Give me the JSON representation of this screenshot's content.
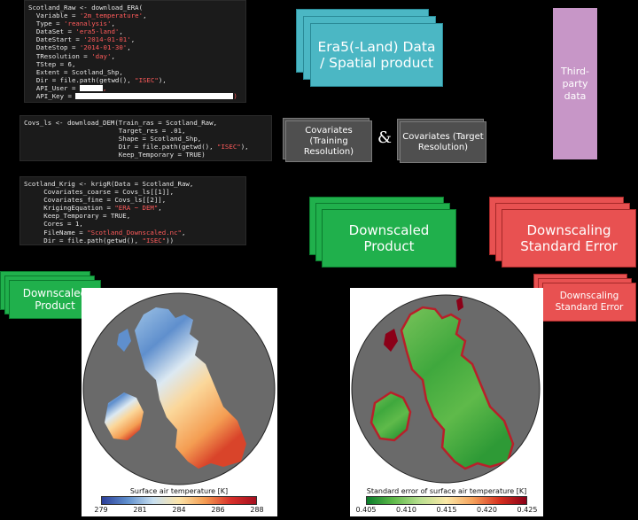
{
  "code_block_1": {
    "lines": [
      [
        "Scotland_Raw <- download_ERA(",
        "",
        ""
      ],
      [
        "  Variable = ",
        "'2m_temperature'",
        ","
      ],
      [
        "  Type = ",
        "'reanalysis'",
        ","
      ],
      [
        "  DataSet = ",
        "'era5-land'",
        ","
      ],
      [
        "  DateStart = ",
        "'2014-01-01'",
        ","
      ],
      [
        "  DateStop = ",
        "'2014-01-30'",
        ","
      ],
      [
        "  TResolution = ",
        "'day'",
        ","
      ],
      [
        "  TStep = 6,",
        "",
        ""
      ],
      [
        "  Extent = Scotland_Shp,",
        "",
        ""
      ],
      [
        "  Dir = file.path(getwd(), ",
        "\"ISEC\"",
        "),"
      ],
      [
        "  API_User = ",
        "",
        ""
      ],
      [
        "  API_Key = ",
        "",
        ""
      ]
    ]
  },
  "code_block_2": {
    "lines": [
      [
        "Covs_ls <- download_DEM(Train_ras = Scotland_Raw,",
        "",
        ""
      ],
      [
        "                        Target_res = .01,",
        "",
        ""
      ],
      [
        "                        Shape = Scotland_Shp,",
        "",
        ""
      ],
      [
        "                        Dir = file.path(getwd(), ",
        "\"ISEC\"",
        "),"
      ],
      [
        "                        Keep_Temporary = TRUE)",
        "",
        ""
      ]
    ]
  },
  "code_block_3": {
    "lines": [
      [
        "Scotland_Krig <- krigR(Data = Scotland_Raw,",
        "",
        ""
      ],
      [
        "     Covariates_coarse = Covs_ls[[1]],",
        "",
        ""
      ],
      [
        "     Covariates_fine = Covs_ls[[2]],",
        "",
        ""
      ],
      [
        "     KrigingEquation = ",
        "\"ERA ~ DEM\"",
        ","
      ],
      [
        "     Keep_Temporary = TRUE,",
        "",
        ""
      ],
      [
        "     Cores = 1,",
        "",
        ""
      ],
      [
        "     FileName = ",
        "\"Scotland_Downscaled.nc\"",
        ","
      ],
      [
        "     Dir = file.path(getwd(), ",
        "\"ISEC\"",
        "))"
      ]
    ]
  },
  "era5_box": {
    "label": "Era5(-Land) Data / Spatial product"
  },
  "third_party_box": {
    "label": "Third-party data"
  },
  "covariates_training": {
    "label": "Covariates (Training Resolution)"
  },
  "ampersand": "&",
  "covariates_target": {
    "label": "Covariates (Target Resolution)"
  },
  "downscaled_product_box": {
    "label": "Downscaled Product"
  },
  "downscaling_error_box": {
    "label": "Downscaling Standard Error"
  },
  "downscaled_small": {
    "label": "Downscaled Product"
  },
  "downscaling_error_small": {
    "label": "Downscaling Standard Error"
  },
  "map_left": {
    "colorbar_title": "Surface air temperature [K]",
    "ticks": [
      "279",
      "281",
      "284",
      "286",
      "288"
    ],
    "colormap": [
      "#2c3f9a",
      "#5f8fcd",
      "#c8dff0",
      "#fbe3a8",
      "#f49d52",
      "#d9312a",
      "#a50f1f"
    ],
    "ocean_color": "#6a6a6a"
  },
  "map_right": {
    "colorbar_title": "Standard error of surface air temperature [K]",
    "ticks": [
      "0.405",
      "0.410",
      "0.415",
      "0.420",
      "0.425"
    ],
    "colormap": [
      "#0b7d2b",
      "#5fba4a",
      "#b9df90",
      "#fbe8a6",
      "#f5a05a",
      "#d7301f",
      "#8b0018"
    ],
    "ocean_color": "#6a6a6a"
  },
  "colors": {
    "teal": "#4bb7c4",
    "green": "#20b04c",
    "red": "#e85151",
    "purple": "#c796c7",
    "gray": "#4f4f4f"
  }
}
